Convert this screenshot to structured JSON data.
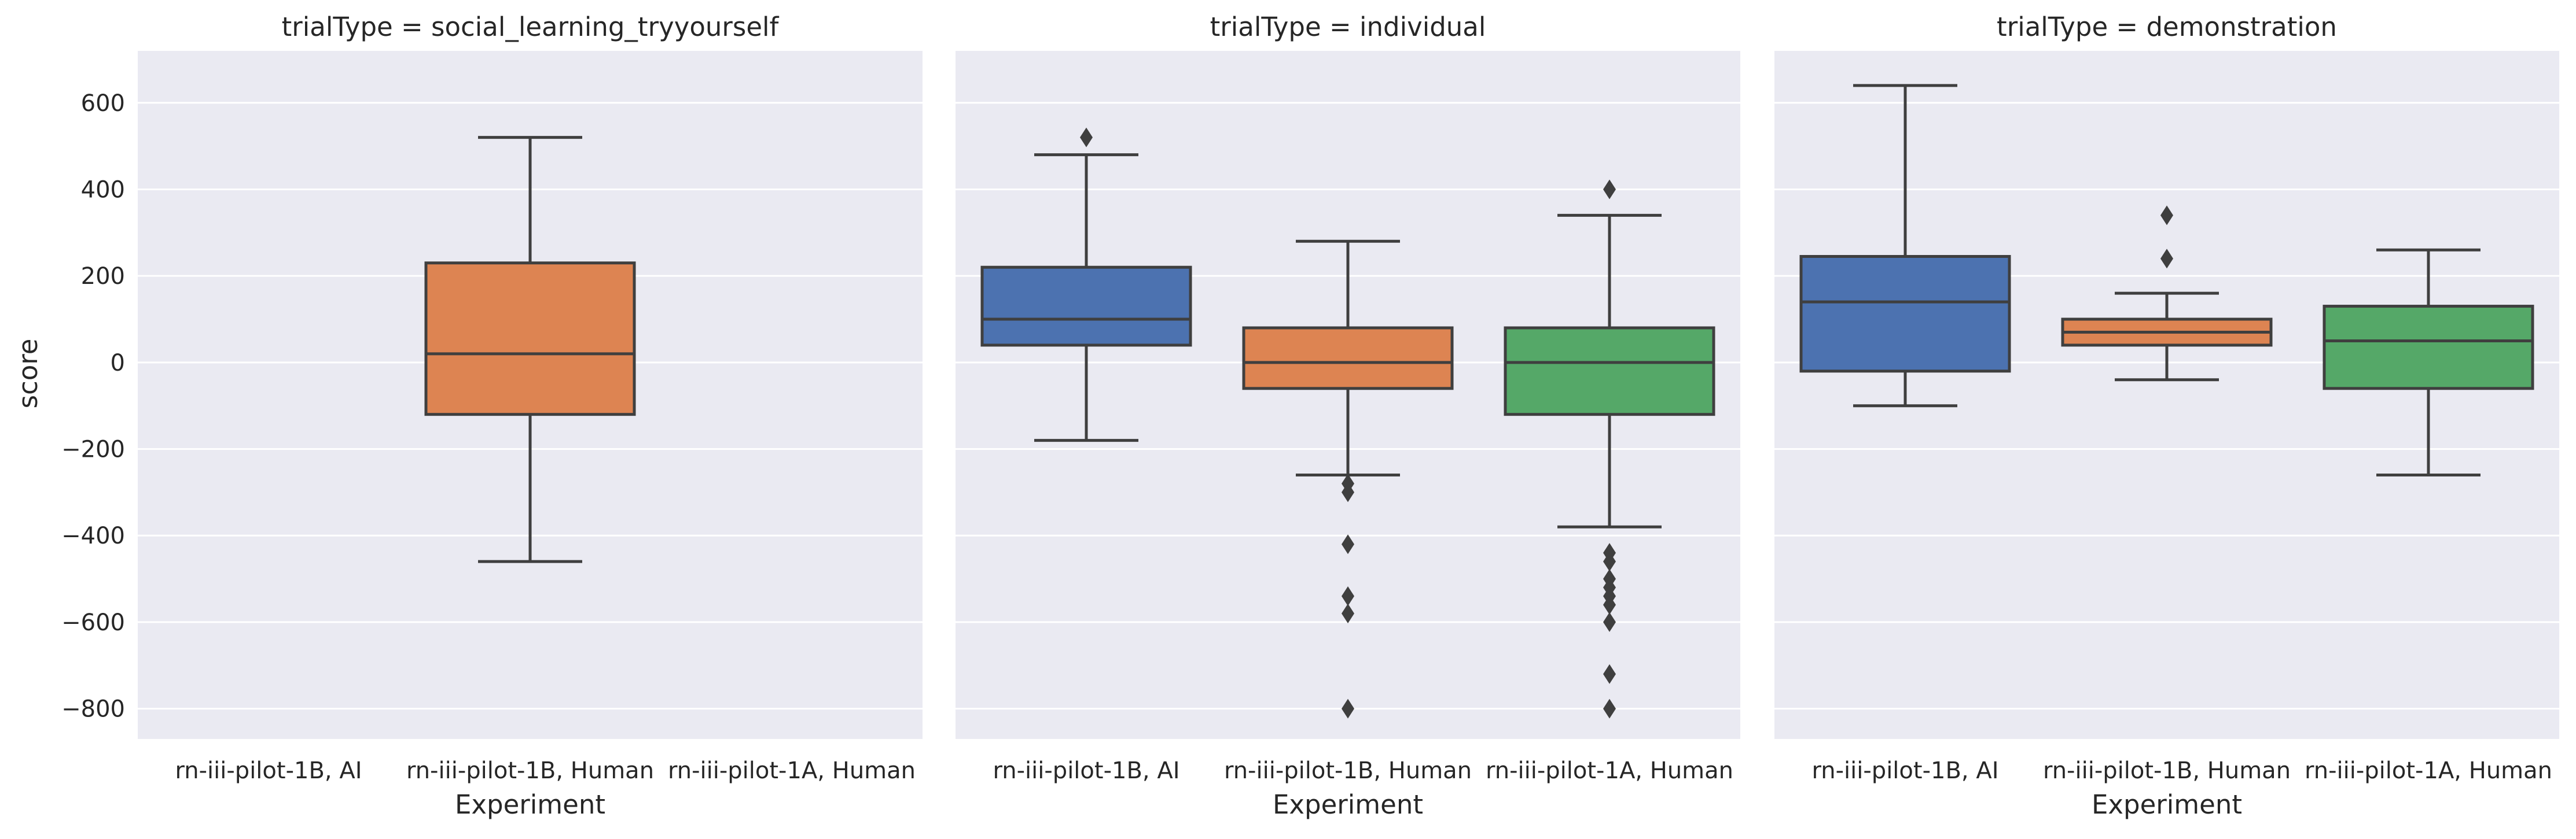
{
  "chart_data": {
    "type": "box",
    "ylabel": "score",
    "xlabel": "Experiment",
    "ylim": [
      -870,
      720
    ],
    "yticks": [
      600,
      400,
      200,
      0,
      -200,
      -400,
      -600,
      -800
    ],
    "ytick_labels": [
      "600",
      "400",
      "200",
      "0",
      "−200",
      "−400",
      "−600",
      "−800"
    ],
    "grid": true,
    "categories": [
      "rn-iii-pilot-1B, AI",
      "rn-iii-pilot-1B, Human",
      "rn-iii-pilot-1A, Human"
    ],
    "colors": [
      "#4c72b0",
      "#dd8452",
      "#55a868"
    ],
    "panels": [
      {
        "title": "trialType = social_learning_tryyourself",
        "boxes": [
          null,
          {
            "whisker_low": -460,
            "q1": -120,
            "median": 20,
            "q3": 230,
            "whisker_high": 520,
            "outliers": []
          },
          null
        ]
      },
      {
        "title": "trialType = individual",
        "boxes": [
          {
            "whisker_low": -180,
            "q1": 40,
            "median": 100,
            "q3": 220,
            "whisker_high": 480,
            "outliers": [
              520
            ]
          },
          {
            "whisker_low": -260,
            "q1": -60,
            "median": 0,
            "q3": 80,
            "whisker_high": 280,
            "outliers": [
              -280,
              -300,
              -420,
              -540,
              -580,
              -800
            ]
          },
          {
            "whisker_low": -380,
            "q1": -120,
            "median": 0,
            "q3": 80,
            "whisker_high": 340,
            "outliers": [
              400,
              -440,
              -460,
              -500,
              -520,
              -540,
              -560,
              -600,
              -720,
              -800
            ]
          }
        ]
      },
      {
        "title": "trialType = demonstration",
        "boxes": [
          {
            "whisker_low": -100,
            "q1": -20,
            "median": 140,
            "q3": 245,
            "whisker_high": 640,
            "outliers": []
          },
          {
            "whisker_low": -40,
            "q1": 40,
            "median": 70,
            "q3": 100,
            "whisker_high": 160,
            "outliers": [
              240,
              340
            ]
          },
          {
            "whisker_low": -260,
            "q1": -60,
            "median": 50,
            "q3": 130,
            "whisker_high": 260,
            "outliers": []
          }
        ]
      }
    ]
  }
}
